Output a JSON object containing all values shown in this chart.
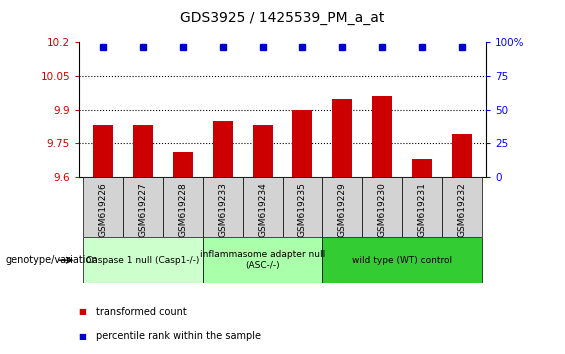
{
  "title": "GDS3925 / 1425539_PM_a_at",
  "samples": [
    "GSM619226",
    "GSM619227",
    "GSM619228",
    "GSM619233",
    "GSM619234",
    "GSM619235",
    "GSM619229",
    "GSM619230",
    "GSM619231",
    "GSM619232"
  ],
  "bar_values": [
    9.83,
    9.83,
    9.71,
    9.85,
    9.83,
    9.9,
    9.95,
    9.96,
    9.68,
    9.79
  ],
  "dot_values": [
    97,
    97,
    97,
    97,
    97,
    97,
    97,
    97,
    97,
    97
  ],
  "bar_color": "#cc0000",
  "dot_color": "#0000cc",
  "ymin": 9.6,
  "ymax": 10.2,
  "y2min": 0,
  "y2max": 100,
  "yticks": [
    9.6,
    9.75,
    9.9,
    10.05,
    10.2
  ],
  "ytick_labels": [
    "9.6",
    "9.75",
    "9.9",
    "10.05",
    "10.2"
  ],
  "y2ticks": [
    0,
    25,
    50,
    75,
    100
  ],
  "y2tick_labels": [
    "0",
    "25",
    "50",
    "75",
    "100%"
  ],
  "hlines": [
    9.75,
    9.9,
    10.05
  ],
  "groups": [
    {
      "label": "Caspase 1 null (Casp1-/-)",
      "start": 0,
      "end": 3,
      "color": "#ccffcc"
    },
    {
      "label": "inflammasome adapter null\n(ASC-/-)",
      "start": 3,
      "end": 6,
      "color": "#aaffaa"
    },
    {
      "label": "wild type (WT) control",
      "start": 6,
      "end": 10,
      "color": "#33cc33"
    }
  ],
  "legend_red_label": "transformed count",
  "legend_blue_label": "percentile rank within the sample",
  "genotype_label": "genotype/variation"
}
